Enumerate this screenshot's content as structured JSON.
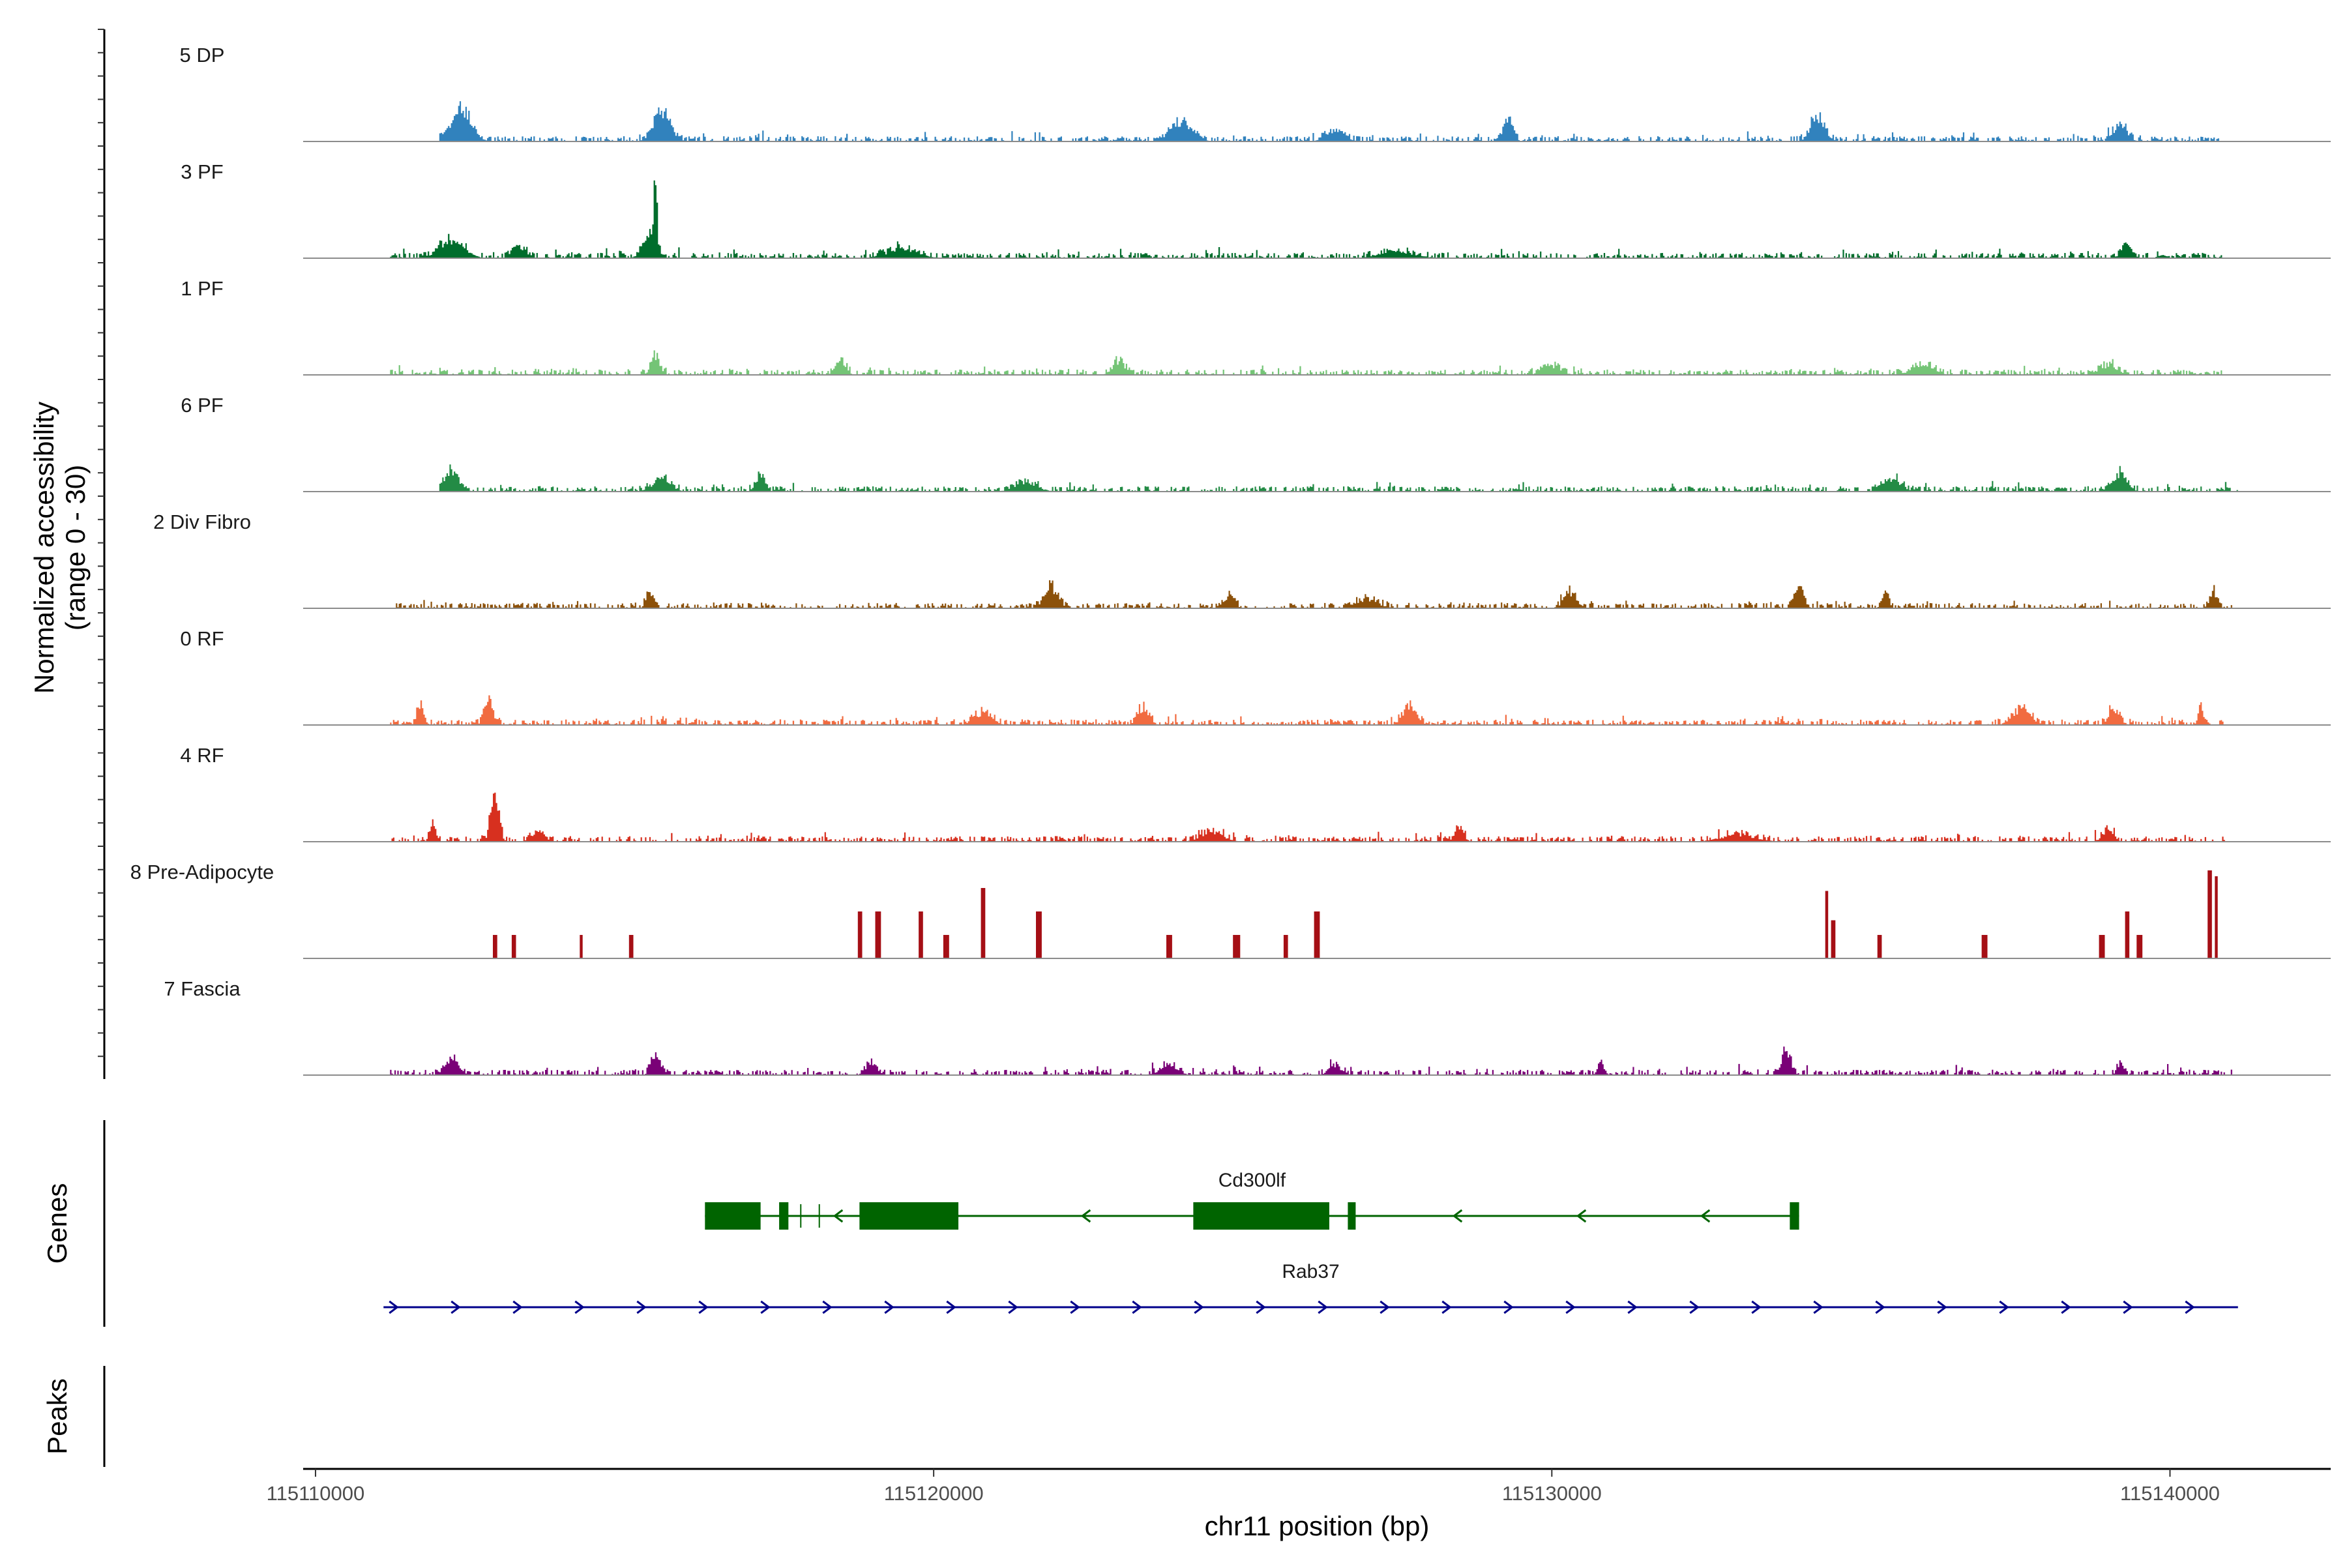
{
  "chart_data": {
    "type": "area",
    "chromosome": "chr11",
    "xlabel": "chr11 position (bp)",
    "ylabel_line1": "Normalized accessibility",
    "ylabel_line2": "(range 0 - 30)",
    "y_range": [
      0,
      30
    ],
    "x_range": [
      115109800,
      115142600
    ],
    "x_ticks": [
      {
        "value": 115110000,
        "label": "115110000"
      },
      {
        "value": 115120000,
        "label": "115120000"
      },
      {
        "value": 115130000,
        "label": "115130000"
      },
      {
        "value": 115140000,
        "label": "115140000"
      }
    ],
    "tracks": [
      {
        "name": "5 DP",
        "color": "#3182bd",
        "start": 115112000,
        "end": 115140800,
        "peaks": [
          [
            115112350,
            11,
            450
          ],
          [
            115115600,
            10,
            380
          ],
          [
            115129300,
            8,
            200
          ],
          [
            115134300,
            8,
            320
          ],
          [
            115124000,
            6,
            500
          ],
          [
            115139200,
            5,
            300
          ],
          [
            115126500,
            4,
            400
          ]
        ]
      },
      {
        "name": "3 PF",
        "color": "#006d2c",
        "start": 115111200,
        "end": 115140900,
        "peaks": [
          [
            115115500,
            27,
            60
          ],
          [
            115115400,
            7,
            300
          ],
          [
            115112200,
            6,
            550
          ],
          [
            115113300,
            4,
            300
          ],
          [
            115139300,
            4,
            250
          ],
          [
            115119500,
            3,
            700
          ],
          [
            115127500,
            2,
            800
          ]
        ]
      },
      {
        "name": "1 PF",
        "color": "#74c476",
        "start": 115111200,
        "end": 115140900,
        "peaks": [
          [
            115115500,
            6,
            200
          ],
          [
            115118500,
            5,
            220
          ],
          [
            115123000,
            4,
            300
          ],
          [
            115130000,
            3,
            400
          ],
          [
            115136000,
            3,
            500
          ],
          [
            115139000,
            3,
            400
          ]
        ]
      },
      {
        "name": "6 PF",
        "color": "#238b45",
        "start": 115112000,
        "end": 115141100,
        "peaks": [
          [
            115112200,
            6,
            350
          ],
          [
            115115600,
            4,
            400
          ],
          [
            115117200,
            6,
            200
          ],
          [
            115139200,
            6,
            300
          ],
          [
            115135500,
            4,
            400
          ],
          [
            115121500,
            3,
            500
          ]
        ]
      },
      {
        "name": "2 Div Fibro",
        "color": "#8c510a",
        "start": 115111300,
        "end": 115141000,
        "peaks": [
          [
            115115400,
            6,
            150
          ],
          [
            115121900,
            7,
            300
          ],
          [
            115124800,
            5,
            200
          ],
          [
            115130300,
            5,
            300
          ],
          [
            115134000,
            7,
            200
          ],
          [
            115135400,
            5,
            150
          ],
          [
            115140700,
            5,
            180
          ],
          [
            115127000,
            3,
            500
          ]
        ]
      },
      {
        "name": "0 RF",
        "color": "#f16b40",
        "start": 115111200,
        "end": 115140900,
        "peaks": [
          [
            115112800,
            9,
            180
          ],
          [
            115111700,
            7,
            150
          ],
          [
            115123400,
            6,
            250
          ],
          [
            115127700,
            7,
            300
          ],
          [
            115120800,
            4,
            400
          ],
          [
            115137600,
            5,
            400
          ],
          [
            115139100,
            5,
            250
          ],
          [
            115140500,
            6,
            120
          ]
        ]
      },
      {
        "name": "4 RF",
        "color": "#d7301f",
        "start": 115111200,
        "end": 115140900,
        "peaks": [
          [
            115112900,
            17,
            180
          ],
          [
            115111900,
            5,
            150
          ],
          [
            115113600,
            3,
            300
          ],
          [
            115128500,
            5,
            200
          ],
          [
            115139000,
            4,
            250
          ],
          [
            115124500,
            3,
            500
          ],
          [
            115133000,
            2,
            800
          ]
        ]
      },
      {
        "name": "8 Pre-Adipocyte",
        "color": "#a50f15",
        "start": 115112800,
        "end": 115140800,
        "sparse": true,
        "peaks": [
          [
            115112900,
            8,
            50
          ],
          [
            115113200,
            8,
            50
          ],
          [
            115114300,
            8,
            50
          ],
          [
            115115100,
            8,
            50
          ],
          [
            115118800,
            16,
            60
          ],
          [
            115119100,
            16,
            60
          ],
          [
            115119800,
            16,
            60
          ],
          [
            115120200,
            8,
            80
          ],
          [
            115120800,
            24,
            40
          ],
          [
            115121700,
            16,
            60
          ],
          [
            115123800,
            8,
            80
          ],
          [
            115124900,
            8,
            80
          ],
          [
            115125700,
            8,
            50
          ],
          [
            115126200,
            16,
            60
          ],
          [
            115134450,
            23,
            40
          ],
          [
            115134550,
            13,
            60
          ],
          [
            115135300,
            8,
            60
          ],
          [
            115137000,
            8,
            80
          ],
          [
            115138900,
            8,
            60
          ],
          [
            115139300,
            16,
            50
          ],
          [
            115139500,
            8,
            80
          ],
          [
            115140650,
            32,
            50
          ],
          [
            115140750,
            28,
            40
          ]
        ]
      },
      {
        "name": "7 Fascia",
        "color": "#7a0177",
        "start": 115111200,
        "end": 115141000,
        "peaks": [
          [
            115115500,
            7,
            200
          ],
          [
            115112200,
            5,
            300
          ],
          [
            115133800,
            8,
            200
          ],
          [
            115130800,
            4,
            150
          ],
          [
            115119000,
            4,
            250
          ],
          [
            115139200,
            4,
            150
          ],
          [
            115123800,
            3,
            400
          ],
          [
            115126500,
            3,
            300
          ]
        ]
      }
    ],
    "genes_panel_title": "Genes",
    "peaks_panel_title": "Peaks",
    "genes": [
      {
        "name": "Cd300lf",
        "color": "#006400",
        "strand": "-",
        "start": 115116300,
        "end": 115134000,
        "exons": [
          [
            115116300,
            115117200
          ],
          [
            115117500,
            115117650
          ],
          [
            115118800,
            115120400
          ],
          [
            115124200,
            115126400
          ],
          [
            115126700,
            115126800
          ],
          [
            115133850,
            115134000
          ]
        ],
        "minor_ticks": [
          115117850,
          115118150
        ]
      },
      {
        "name": "Rab37",
        "color": "#00008b",
        "strand": "+",
        "start": 115111100,
        "end": 115141100,
        "exons": []
      }
    ],
    "peaks": []
  }
}
